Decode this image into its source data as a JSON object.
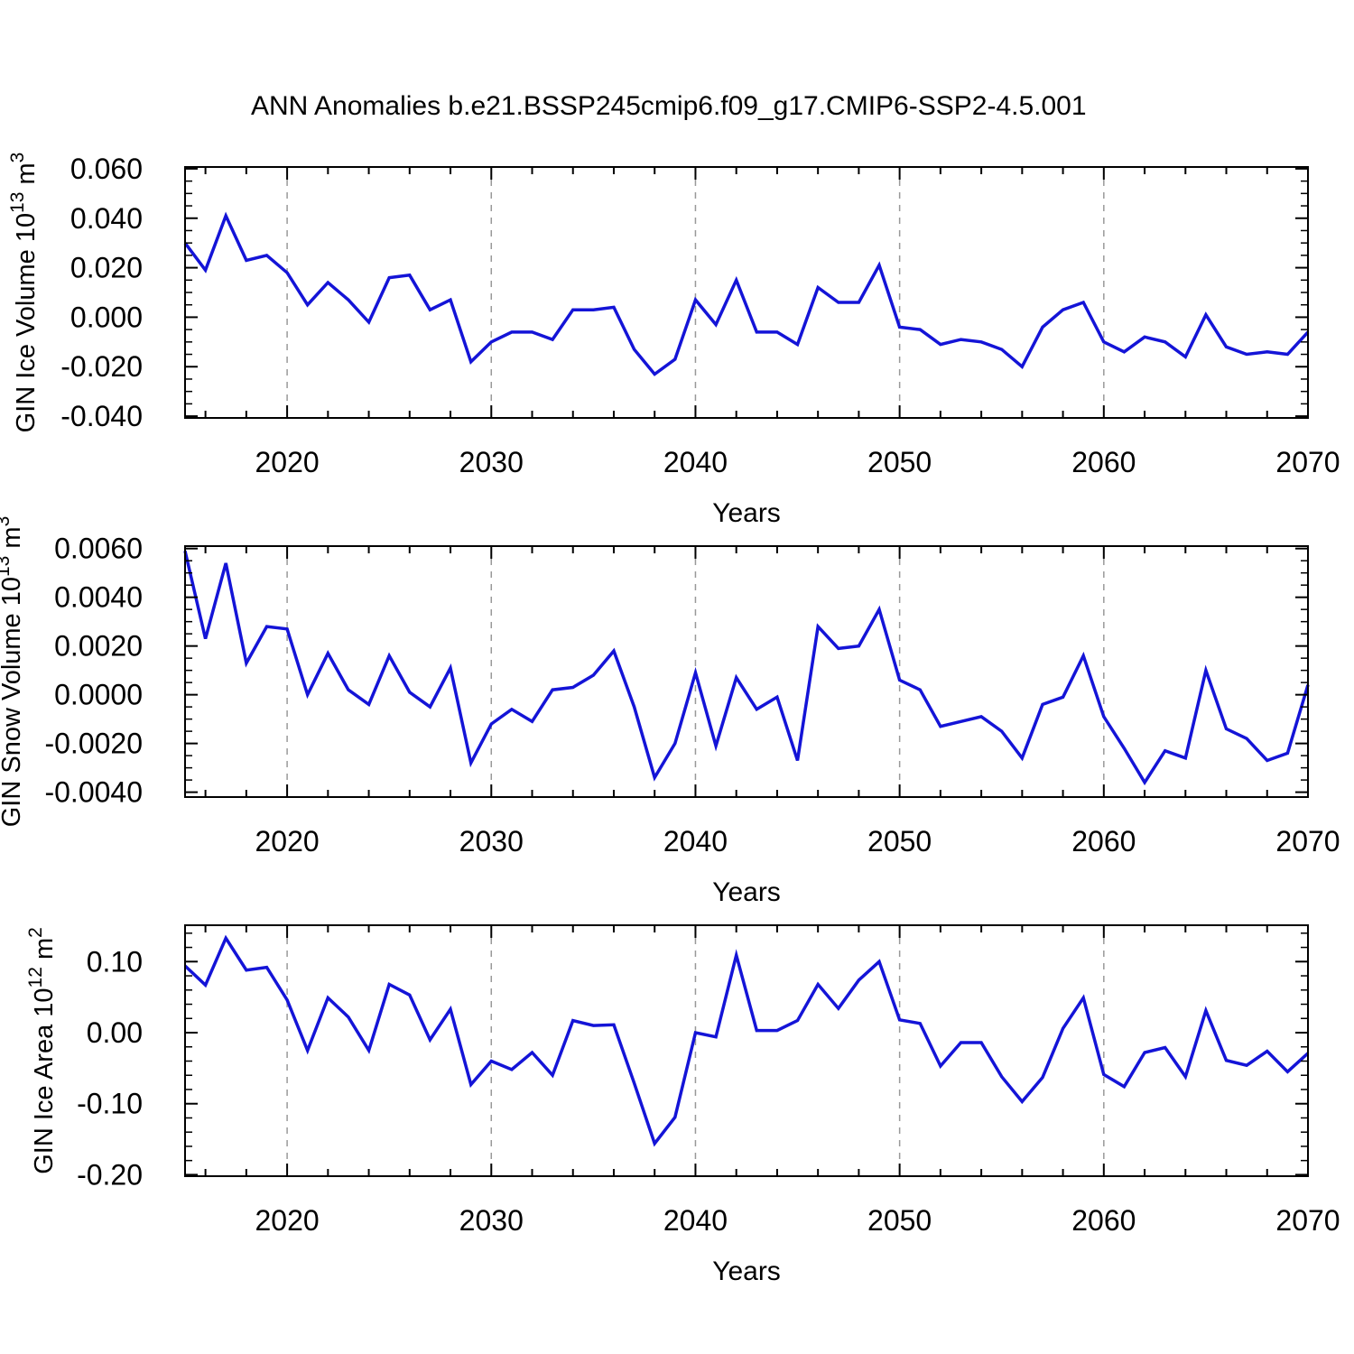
{
  "title": "ANN Anomalies b.e21.BSSP245cmip6.f09_g17.CMIP6-SSP2-4.5.001",
  "colors": {
    "line": "#1414d7",
    "grid": "#999999",
    "axis": "#000000",
    "text": "#000000",
    "background": "#ffffff"
  },
  "chart_data": [
    {
      "type": "line",
      "name": "gin-ice-volume",
      "ylabel_segments": [
        {
          "t": "GIN Ice Volume 10"
        },
        {
          "t": "13",
          "sup": true
        },
        {
          "t": " m"
        },
        {
          "t": "3",
          "sup": true
        }
      ],
      "xlabel": "Years",
      "x_start": 2015,
      "x_end": 2070,
      "x_step": 1,
      "xticks_major": [
        2020,
        2030,
        2040,
        2050,
        2060,
        2070
      ],
      "xtick_minor_step": 2,
      "grid_x": [
        2020,
        2030,
        2040,
        2050,
        2060
      ],
      "ylim": [
        -0.0407,
        0.0607
      ],
      "ytick_values": [
        0.06,
        0.04,
        0.02,
        0.0,
        -0.02,
        -0.04
      ],
      "ytick_labels": [
        "0.060",
        "0.040",
        "0.020",
        "0.000",
        "-0.020",
        "-0.040"
      ],
      "ytick_minor_step": 0.005,
      "values": [
        0.03,
        0.019,
        0.041,
        0.023,
        0.025,
        0.018,
        0.005,
        0.014,
        0.007,
        -0.002,
        0.016,
        0.017,
        0.003,
        0.007,
        -0.018,
        -0.01,
        -0.006,
        -0.006,
        -0.009,
        0.003,
        0.003,
        0.004,
        -0.013,
        -0.023,
        -0.017,
        0.007,
        -0.003,
        0.015,
        -0.006,
        -0.006,
        -0.011,
        0.012,
        0.006,
        0.006,
        0.021,
        -0.004,
        -0.005,
        -0.011,
        -0.009,
        -0.01,
        -0.013,
        -0.02,
        -0.004,
        0.003,
        0.006,
        -0.01,
        -0.014,
        -0.008,
        -0.01,
        -0.016,
        0.001,
        -0.012,
        -0.015,
        -0.014,
        -0.015,
        -0.006
      ]
    },
    {
      "type": "line",
      "name": "gin-snow-volume",
      "ylabel_segments": [
        {
          "t": "GIN Snow Volume 10"
        },
        {
          "t": "13",
          "sup": true
        },
        {
          "t": " m"
        },
        {
          "t": "3",
          "sup": true
        }
      ],
      "xlabel": "Years",
      "x_start": 2015,
      "x_end": 2070,
      "x_step": 1,
      "xticks_major": [
        2020,
        2030,
        2040,
        2050,
        2060,
        2070
      ],
      "xtick_minor_step": 2,
      "grid_x": [
        2020,
        2030,
        2040,
        2050,
        2060
      ],
      "ylim": [
        -0.0042,
        0.0061
      ],
      "ytick_values": [
        0.006,
        0.004,
        0.002,
        0.0,
        -0.002,
        -0.004
      ],
      "ytick_labels": [
        "0.0060",
        "0.0040",
        "0.0020",
        "0.0000",
        "-0.0020",
        "-0.0040"
      ],
      "ytick_minor_step": 0.0005,
      "values": [
        0.0059,
        0.0023,
        0.0054,
        0.0013,
        0.0028,
        0.0027,
        0.0,
        0.0017,
        0.0002,
        -0.0004,
        0.0016,
        0.0001,
        -0.0005,
        0.0011,
        -0.0028,
        -0.0012,
        -0.0006,
        -0.0011,
        0.0002,
        0.0003,
        0.0008,
        0.0018,
        -0.0005,
        -0.0034,
        -0.002,
        0.0009,
        -0.0021,
        0.0007,
        -0.0006,
        -0.0001,
        -0.0027,
        0.0028,
        0.0019,
        0.002,
        0.0035,
        0.0006,
        0.0002,
        -0.0013,
        -0.0011,
        -0.0009,
        -0.0015,
        -0.0026,
        -0.0004,
        -0.0001,
        0.0016,
        -0.0009,
        -0.0022,
        -0.0036,
        -0.0023,
        -0.0026,
        0.001,
        -0.0014,
        -0.0018,
        -0.0027,
        -0.0024,
        0.0004
      ]
    },
    {
      "type": "line",
      "name": "gin-ice-area",
      "ylabel_segments": [
        {
          "t": "GIN Ice Area 10"
        },
        {
          "t": "12",
          "sup": true
        },
        {
          "t": " m"
        },
        {
          "t": "2",
          "sup": true
        }
      ],
      "xlabel": "Years",
      "x_start": 2015,
      "x_end": 2070,
      "x_step": 1,
      "xticks_major": [
        2020,
        2030,
        2040,
        2050,
        2060,
        2070
      ],
      "xtick_minor_step": 2,
      "grid_x": [
        2020,
        2030,
        2040,
        2050,
        2060
      ],
      "ylim": [
        -0.202,
        0.1512
      ],
      "ytick_values": [
        0.1,
        0.0,
        -0.1,
        -0.2
      ],
      "ytick_labels": [
        "0.10",
        "0.00",
        "-0.10",
        "-0.20"
      ],
      "ytick_minor_step": 0.02,
      "values": [
        0.094,
        0.067,
        0.133,
        0.088,
        0.092,
        0.046,
        -0.025,
        0.049,
        0.022,
        -0.025,
        0.068,
        0.053,
        -0.01,
        0.033,
        -0.073,
        -0.04,
        -0.052,
        -0.028,
        -0.06,
        0.017,
        0.01,
        0.011,
        -0.071,
        -0.156,
        -0.119,
        0.0,
        -0.006,
        0.109,
        0.003,
        0.003,
        0.017,
        0.068,
        0.034,
        0.074,
        0.1,
        0.018,
        0.013,
        -0.047,
        -0.014,
        -0.014,
        -0.062,
        -0.097,
        -0.063,
        0.006,
        0.049,
        -0.059,
        -0.076,
        -0.028,
        -0.021,
        -0.062,
        0.031,
        -0.039,
        -0.046,
        -0.026,
        -0.055,
        -0.029
      ]
    }
  ]
}
